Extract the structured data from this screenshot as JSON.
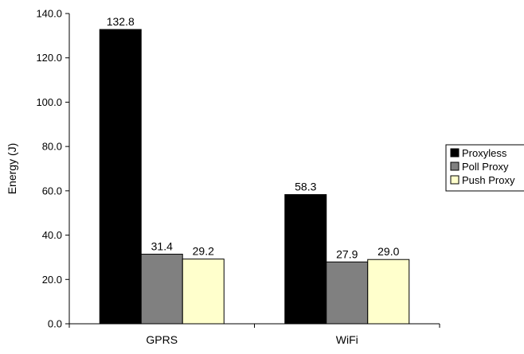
{
  "chart_data": {
    "type": "bar",
    "title": "",
    "xlabel": "",
    "ylabel": "Energy (J)",
    "ylim": [
      0,
      140
    ],
    "yticks": [
      "0.0",
      "20.0",
      "40.0",
      "60.0",
      "80.0",
      "100.0",
      "120.0",
      "140.0"
    ],
    "grid": false,
    "legend_position": "right",
    "categories": [
      "GPRS",
      "WiFi"
    ],
    "series": [
      {
        "name": "Proxyless",
        "values": [
          132.8,
          58.3
        ],
        "labels": [
          "132.8",
          "58.3"
        ],
        "color": "#000000"
      },
      {
        "name": "Poll Proxy",
        "values": [
          31.4,
          27.9
        ],
        "labels": [
          "31.4",
          "27.9"
        ],
        "color": "#808080"
      },
      {
        "name": "Push Proxy",
        "values": [
          29.2,
          29.0
        ],
        "labels": [
          "29.2",
          "29.0"
        ],
        "color": "#ffffcc"
      }
    ]
  }
}
